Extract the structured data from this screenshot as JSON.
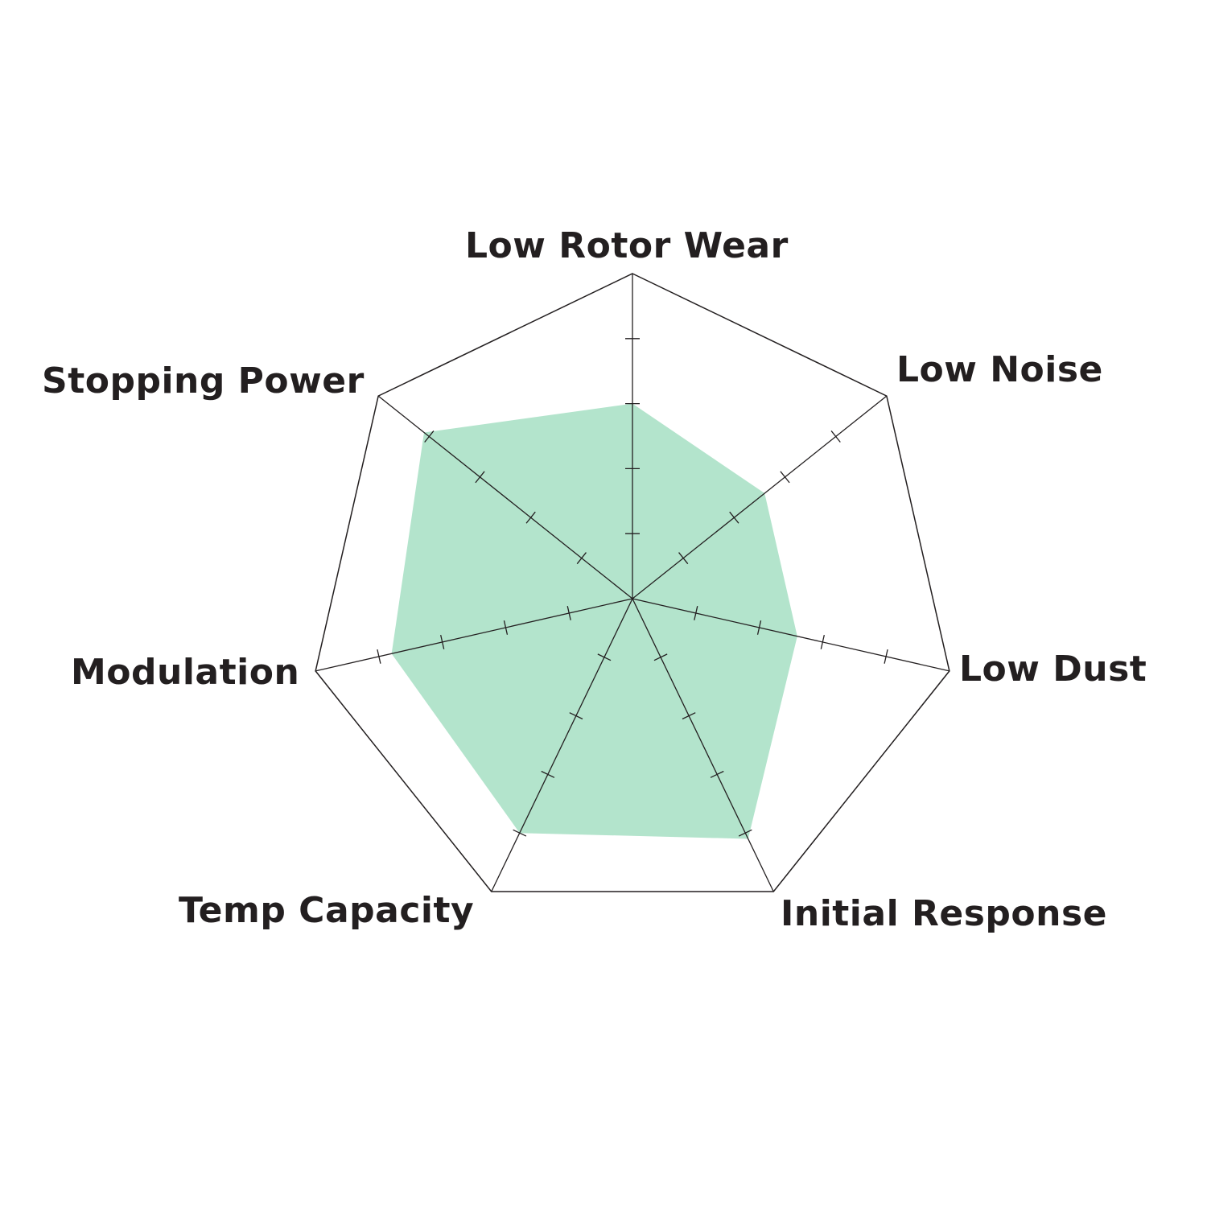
{
  "chart_data": {
    "type": "radar",
    "title": "",
    "categories": [
      "Low Rotor Wear",
      "Low Noise",
      "Low Dust",
      "Initial Response",
      "Temp Capacity",
      "Modulation",
      "Stopping Power"
    ],
    "values": [
      3.0,
      2.6,
      2.6,
      4.1,
      4.0,
      3.8,
      4.1
    ],
    "range": [
      0,
      5
    ],
    "ticks": [
      1,
      2,
      3,
      4
    ],
    "grid": false,
    "fill_color": "#b3e4cc",
    "line_color": "#231f20",
    "text_color": "#231f20"
  }
}
